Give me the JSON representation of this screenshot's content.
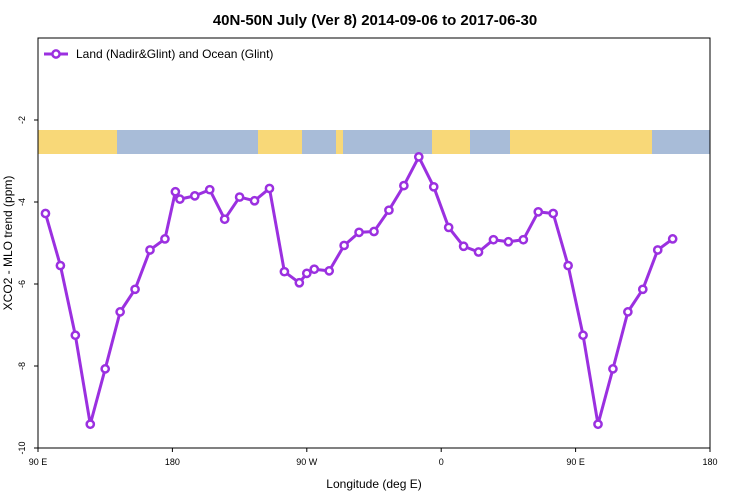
{
  "chart_data": {
    "type": "line",
    "title": "40N-50N July (Ver 8)   2014-09-06 to 2017-06-30",
    "xlabel": "Longitude (deg E)",
    "ylabel": "XCO2 - MLO trend (ppm)",
    "x_ticks": [
      "90 E",
      "180",
      "90 W",
      "0",
      "90 E",
      "180"
    ],
    "x_tick_values": [
      90,
      180,
      270,
      360,
      450,
      540
    ],
    "xlim": [
      90,
      540
    ],
    "y_ticks": [
      "-2",
      "-4",
      "-6",
      "-8",
      "-10"
    ],
    "y_tick_values": [
      -2,
      -4,
      -6,
      -8,
      -10
    ],
    "ylim": [
      -10,
      0
    ],
    "grid": false,
    "legend_position": "top-left",
    "colors": {
      "series": "#9b30e0",
      "land": "#f8d878",
      "ocean": "#a8bcd8"
    },
    "series": [
      {
        "name": "Land (Nadir&Glint) and Ocean (Glint)",
        "x": [
          95,
          105,
          115,
          125,
          135,
          145,
          155,
          165,
          175,
          182,
          185,
          195,
          205,
          215,
          225,
          235,
          245,
          255,
          265,
          270,
          275,
          285,
          295,
          305,
          315,
          325,
          335,
          345,
          355,
          365,
          375,
          385,
          395,
          405,
          415,
          425,
          435,
          445,
          455,
          465,
          475,
          485,
          495,
          505,
          515,
          525,
          535
        ],
        "y": [
          -4.28,
          -5.55,
          -7.25,
          -9.42,
          -8.07,
          -6.68,
          -6.13,
          -5.17,
          -4.9,
          -3.75,
          -3.93,
          -3.85,
          -3.7,
          -4.42,
          -3.88,
          -3.97,
          -3.67,
          -5.7,
          -5.97,
          -5.74,
          -5.64,
          -5.68,
          -5.06,
          -4.74,
          -4.72,
          -4.2,
          -3.6,
          -2.9,
          -3.63,
          -4.62,
          -5.08,
          -5.22,
          -4.92,
          -4.97,
          -4.92,
          -4.24,
          -4.28,
          -5.55,
          -7.25,
          -9.42,
          -8.07,
          -6.68,
          -6.13,
          -5.17,
          -4.9,
          null,
          null
        ]
      }
    ]
  }
}
